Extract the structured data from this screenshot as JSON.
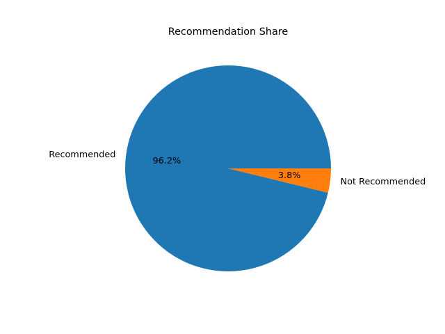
{
  "chart_data": {
    "type": "pie",
    "title": "Recommendation Share",
    "slices": [
      {
        "label": "Recommended",
        "value": 96.2,
        "pct_label": "96.2%",
        "color": "#1f77b4"
      },
      {
        "label": "Not Recommended",
        "value": 3.8,
        "pct_label": "3.8%",
        "color": "#ff7f0e"
      }
    ],
    "start_angle_deg": 0,
    "direction": "counterclockwise",
    "legend": "none"
  }
}
